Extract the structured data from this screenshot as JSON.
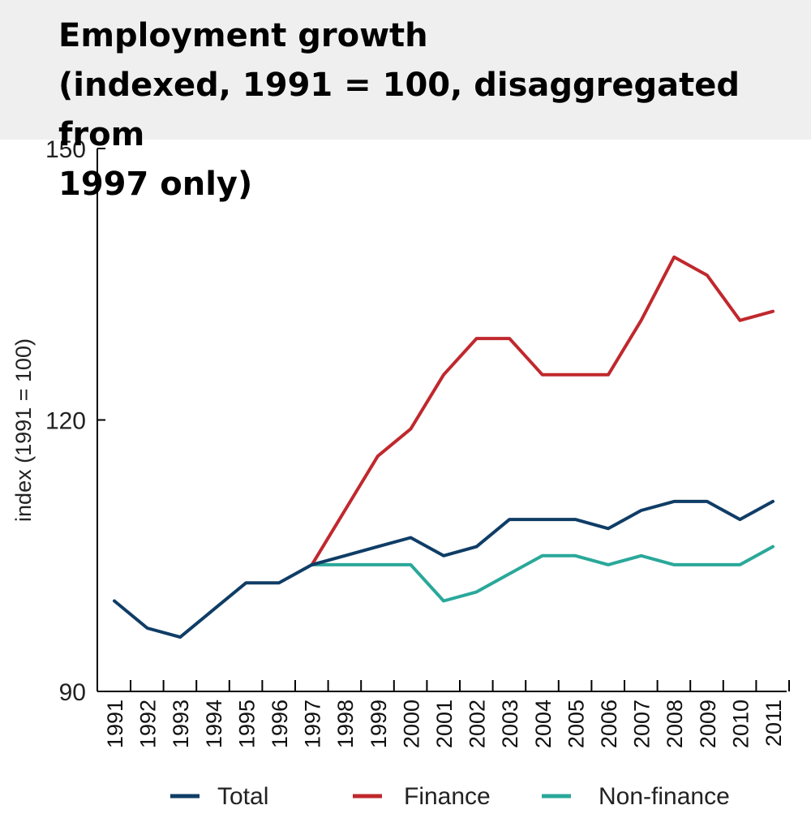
{
  "chart_data": {
    "type": "line",
    "title": "Employment growth",
    "subtitle": "(indexed, 1991 = 100, disaggregated from",
    "subtitle_cont": "1997 only)",
    "xlabel": "",
    "ylabel": "index (1991 = 100)",
    "ylim": [
      90,
      150
    ],
    "yticks": [
      90,
      120,
      150
    ],
    "grid": false,
    "legend_position": "bottom",
    "categories": [
      "1991",
      "1992",
      "1993",
      "1994",
      "1995",
      "1996",
      "1997",
      "1998",
      "1999",
      "2000",
      "2001",
      "2002",
      "2003",
      "2004",
      "2005",
      "2006",
      "2007",
      "2008",
      "2009",
      "2010",
      "2011"
    ],
    "series": [
      {
        "name": "Total",
        "color": "#0f3d66",
        "values": [
          100,
          97,
          96,
          99,
          102,
          102,
          104,
          105,
          106,
          107,
          105,
          106,
          109,
          109,
          109,
          108,
          110,
          111,
          111,
          109,
          111
        ]
      },
      {
        "name": "Finance",
        "color": "#c0282d",
        "values": [
          null,
          null,
          null,
          null,
          null,
          null,
          104,
          110,
          116,
          119,
          125,
          129,
          129,
          125,
          125,
          125,
          131,
          138,
          136,
          131,
          132
        ]
      },
      {
        "name": "Non-finance",
        "color": "#2aa89a",
        "values": [
          null,
          null,
          null,
          null,
          null,
          null,
          104,
          104,
          104,
          104,
          100,
          101,
          103,
          105,
          105,
          104,
          105,
          104,
          104,
          104,
          106
        ]
      }
    ]
  }
}
